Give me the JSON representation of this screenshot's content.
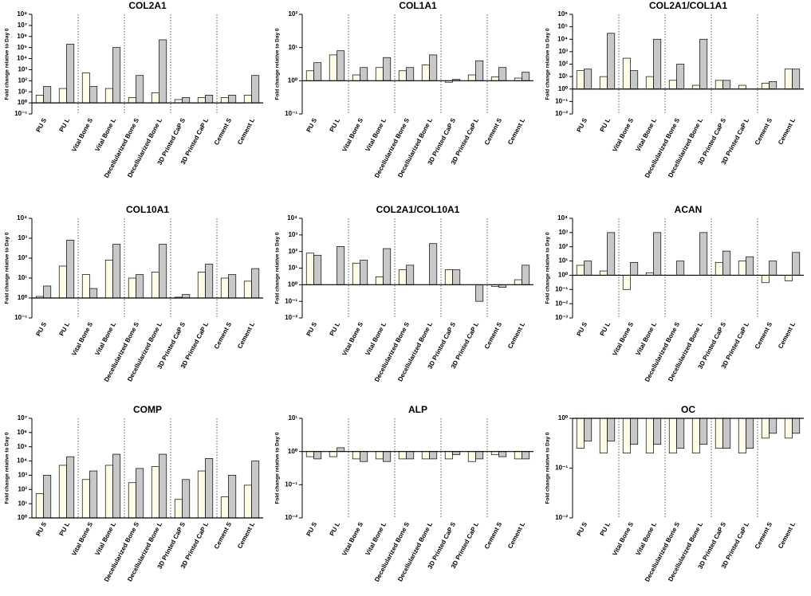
{
  "chart_data": [
    {
      "type": "bar",
      "title": "COL2A1",
      "ylabel": "Fold change relative to Day 0",
      "log": true,
      "categories": [
        "PU S",
        "PU L",
        "Vital Bone S",
        "Vital Bone L",
        "Decellularized Bone S",
        "Decellularized Bone L",
        "3D Printed CaP S",
        "3D Printed CaP L",
        "Cement S",
        "Cement L"
      ],
      "series": [
        {
          "color": "#fffde6",
          "values": [
            5,
            20,
            500,
            20,
            3,
            8,
            2,
            3,
            3,
            5
          ]
        },
        {
          "color": "#c8c8c8",
          "values": [
            30,
            200000,
            30,
            100000,
            300,
            500000,
            3,
            5,
            5,
            300
          ]
        }
      ],
      "ylim": [
        0.1,
        100000000
      ],
      "yticks": [
        {
          "value": 0.1,
          "label": "10⁻¹"
        },
        {
          "value": 1,
          "label": "10⁰"
        },
        {
          "value": 10,
          "label": "10¹"
        },
        {
          "value": 100,
          "label": "10²"
        },
        {
          "value": 1000,
          "label": "10³"
        },
        {
          "value": 10000,
          "label": "10⁴"
        },
        {
          "value": 100000,
          "label": "10⁵"
        },
        {
          "value": 1000000,
          "label": "10⁶"
        },
        {
          "value": 10000000,
          "label": "10⁷"
        },
        {
          "value": 100000000,
          "label": "10⁸"
        }
      ]
    },
    {
      "type": "bar",
      "title": "COL1A1",
      "ylabel": "Fold change relative to Day 0",
      "log": true,
      "categories": [
        "PU S",
        "PU L",
        "Vital Bone S",
        "Vital Bone L",
        "Decellularized Bone S",
        "Decellularized Bone L",
        "3D Printed CaP S",
        "3D Printed CaP L",
        "Cement S",
        "Cement L"
      ],
      "series": [
        {
          "color": "#fffde6",
          "values": [
            2,
            6,
            1.5,
            2.5,
            2,
            3,
            0.9,
            1.5,
            1.3,
            1.2
          ]
        },
        {
          "color": "#c8c8c8",
          "values": [
            3.5,
            8,
            2.5,
            5,
            2.5,
            6,
            1.1,
            4,
            2.5,
            1.8
          ]
        }
      ],
      "ylim": [
        0.1,
        100
      ],
      "yticks": [
        {
          "value": 0.1,
          "label": "10⁻¹"
        },
        {
          "value": 1,
          "label": "10⁰"
        },
        {
          "value": 10,
          "label": "10¹"
        },
        {
          "value": 100,
          "label": "10²"
        }
      ]
    },
    {
      "type": "bar",
      "title": "COL2A1/COL1A1",
      "ylabel": "Fold change relative to Day 0",
      "log": true,
      "categories": [
        "PU S",
        "PU L",
        "Vital Bone S",
        "Vital Bone L",
        "Decellularized Bone S",
        "Decellularized Bone L",
        "3D Printed CaP S",
        "3D Printed CaP L",
        "Cement S",
        "Cement L"
      ],
      "series": [
        {
          "color": "#fffde6",
          "values": [
            30,
            10,
            300,
            10,
            5,
            2,
            5,
            2,
            3,
            40
          ]
        },
        {
          "color": "#c8c8c8",
          "values": [
            40,
            30000,
            30,
            10000,
            100,
            10000,
            5,
            1,
            4,
            40
          ]
        }
      ],
      "ylim": [
        0.01,
        1000000
      ],
      "yticks": [
        {
          "value": 0.01,
          "label": "10⁻²"
        },
        {
          "value": 0.1,
          "label": "10⁻¹"
        },
        {
          "value": 1,
          "label": "10⁰"
        },
        {
          "value": 10,
          "label": "10¹"
        },
        {
          "value": 100,
          "label": "10²"
        },
        {
          "value": 1000,
          "label": "10³"
        },
        {
          "value": 10000,
          "label": "10⁴"
        },
        {
          "value": 100000,
          "label": "10⁵"
        },
        {
          "value": 1000000,
          "label": "10⁶"
        }
      ]
    },
    {
      "type": "bar",
      "title": "COL10A1",
      "ylabel": "Fold change relative to Day 0",
      "log": true,
      "categories": [
        "PU S",
        "PU L",
        "Vital Bone S",
        "Vital Bone L",
        "Decellularized Bone S",
        "Decellularized Bone L",
        "3D Printed CaP S",
        "3D Printed CaP L",
        "Cement S",
        "Cement L"
      ],
      "series": [
        {
          "color": "#fffde6",
          "values": [
            1.2,
            40,
            15,
            80,
            10,
            20,
            1.1,
            20,
            10,
            7
          ]
        },
        {
          "color": "#c8c8c8",
          "values": [
            4,
            800,
            3,
            500,
            15,
            500,
            1.5,
            50,
            15,
            30
          ]
        }
      ],
      "ylim": [
        0.1,
        10000
      ],
      "yticks": [
        {
          "value": 0.1,
          "label": "10⁻¹"
        },
        {
          "value": 1,
          "label": "10⁰"
        },
        {
          "value": 10,
          "label": "10¹"
        },
        {
          "value": 100,
          "label": "10²"
        },
        {
          "value": 1000,
          "label": "10³"
        },
        {
          "value": 10000,
          "label": "10⁴"
        }
      ]
    },
    {
      "type": "bar",
      "title": "COL2A1/COL10A1",
      "ylabel": "Fold change relative to Day 0",
      "log": true,
      "categories": [
        "PU S",
        "PU L",
        "Vital Bone S",
        "Vital Bone L",
        "Decellularized Bone S",
        "Decellularized Bone L",
        "3D Printed CaP S",
        "3D Printed CaP L",
        "Cement S",
        "Cement L"
      ],
      "series": [
        {
          "color": "#fffde6",
          "values": [
            80,
            1,
            20,
            3,
            8,
            1,
            8,
            1,
            0.8,
            2
          ]
        },
        {
          "color": "#c8c8c8",
          "values": [
            60,
            200,
            30,
            150,
            15,
            300,
            8,
            0.1,
            0.7,
            15
          ]
        }
      ],
      "ylim": [
        0.01,
        10000
      ],
      "yticks": [
        {
          "value": 0.01,
          "label": "10⁻²"
        },
        {
          "value": 0.1,
          "label": "10⁻¹"
        },
        {
          "value": 1,
          "label": "10⁰"
        },
        {
          "value": 10,
          "label": "10¹"
        },
        {
          "value": 100,
          "label": "10²"
        },
        {
          "value": 1000,
          "label": "10³"
        },
        {
          "value": 10000,
          "label": "10⁴"
        }
      ]
    },
    {
      "type": "bar",
      "title": "ACAN",
      "ylabel": "Fold change relative to Day 0",
      "log": true,
      "categories": [
        "PU S",
        "PU L",
        "Vital Bone S",
        "Vital Bone L",
        "Decellularized Bone S",
        "Decellularized Bone L",
        "3D Printed CaP S",
        "3D Printed CaP L",
        "Cement S",
        "Cement L"
      ],
      "series": [
        {
          "color": "#fffde6",
          "values": [
            5,
            2,
            0.1,
            1.5,
            1,
            1,
            8,
            10,
            0.3,
            0.4
          ]
        },
        {
          "color": "#c8c8c8",
          "values": [
            10,
            1000,
            8,
            1000,
            10,
            1000,
            50,
            20,
            10,
            40
          ]
        }
      ],
      "ylim": [
        0.001,
        10000
      ],
      "yticks": [
        {
          "value": 0.001,
          "label": "10⁻³"
        },
        {
          "value": 0.01,
          "label": "10⁻²"
        },
        {
          "value": 0.1,
          "label": "10⁻¹"
        },
        {
          "value": 1,
          "label": "10⁰"
        },
        {
          "value": 10,
          "label": "10¹"
        },
        {
          "value": 100,
          "label": "10²"
        },
        {
          "value": 1000,
          "label": "10³"
        },
        {
          "value": 10000,
          "label": "10⁴"
        }
      ]
    },
    {
      "type": "bar",
      "title": "COMP",
      "ylabel": "Fold change relative to Day 0",
      "log": true,
      "categories": [
        "PU S",
        "PU L",
        "Vital Bone S",
        "Vital Bone L",
        "Decellularized Bone S",
        "Decellularized Bone L",
        "3D Printed CaP S",
        "3D Printed CaP L",
        "Cement S",
        "Cement L"
      ],
      "series": [
        {
          "color": "#fffde6",
          "values": [
            50,
            5000,
            500,
            5000,
            300,
            4000,
            20,
            2000,
            30,
            200
          ]
        },
        {
          "color": "#c8c8c8",
          "values": [
            1000,
            20000,
            2000,
            30000,
            3000,
            30000,
            500,
            15000,
            1000,
            10000
          ]
        }
      ],
      "ylim": [
        1,
        10000000
      ],
      "yticks": [
        {
          "value": 1,
          "label": "10⁰"
        },
        {
          "value": 10,
          "label": "10¹"
        },
        {
          "value": 100,
          "label": "10²"
        },
        {
          "value": 1000,
          "label": "10³"
        },
        {
          "value": 10000,
          "label": "10⁴"
        },
        {
          "value": 100000,
          "label": "10⁵"
        },
        {
          "value": 1000000,
          "label": "10⁶"
        },
        {
          "value": 10000000,
          "label": "10⁷"
        }
      ]
    },
    {
      "type": "bar",
      "title": "ALP",
      "ylabel": "Fold change relative to Day 0",
      "log": true,
      "categories": [
        "PU S",
        "PU L",
        "Vital Bone S",
        "Vital Bone L",
        "Decellularized Bone S",
        "Decellularized Bone L",
        "3D Printed CaP S",
        "3D Printed CaP L",
        "Cement S",
        "Cement L"
      ],
      "series": [
        {
          "color": "#fffde6",
          "values": [
            0.7,
            0.7,
            0.6,
            0.6,
            0.6,
            0.6,
            0.6,
            0.5,
            0.8,
            0.6
          ]
        },
        {
          "color": "#c8c8c8",
          "values": [
            0.6,
            1.3,
            0.5,
            0.5,
            0.6,
            0.6,
            0.8,
            0.6,
            0.7,
            0.6
          ]
        }
      ],
      "ylim": [
        0.01,
        10
      ],
      "yticks": [
        {
          "value": 0.01,
          "label": "10⁻²"
        },
        {
          "value": 0.1,
          "label": "10⁻¹"
        },
        {
          "value": 1,
          "label": "10⁰"
        },
        {
          "value": 10,
          "label": "10¹"
        }
      ]
    },
    {
      "type": "bar",
      "title": "OC",
      "ylabel": "Fold change relative to Day 0",
      "log": true,
      "categories": [
        "PU S",
        "PU L",
        "Vital Bone S",
        "Vital Bone L",
        "Decellularized Bone S",
        "Decellularized Bone L",
        "3D Printed CaP S",
        "3D Printed CaP L",
        "Cement S",
        "Cement L"
      ],
      "series": [
        {
          "color": "#fffde6",
          "values": [
            0.25,
            0.2,
            0.2,
            0.2,
            0.2,
            0.2,
            0.25,
            0.2,
            0.4,
            0.4
          ]
        },
        {
          "color": "#c8c8c8",
          "values": [
            0.35,
            0.35,
            0.3,
            0.3,
            0.25,
            0.3,
            0.25,
            0.25,
            0.5,
            0.5
          ]
        }
      ],
      "ylim": [
        0.01,
        1
      ],
      "yticks": [
        {
          "value": 0.01,
          "label": "10⁻²"
        },
        {
          "value": 0.1,
          "label": "10⁻¹"
        },
        {
          "value": 1,
          "label": "10⁰"
        }
      ]
    }
  ]
}
